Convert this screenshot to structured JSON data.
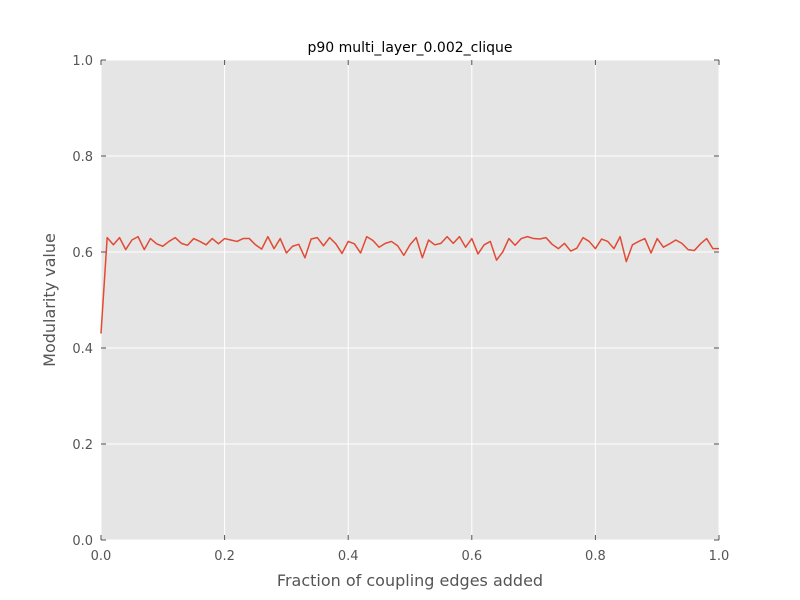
{
  "chart_data": {
    "type": "line",
    "title": "p90 multi_layer_0.002_clique",
    "xlabel": "Fraction of coupling edges added",
    "ylabel": "Modularity value",
    "xlim": [
      0.0,
      1.0
    ],
    "ylim": [
      0.0,
      1.0
    ],
    "xticks": [
      0.0,
      0.2,
      0.4,
      0.6,
      0.8,
      1.0
    ],
    "xtick_labels": [
      "0.0",
      "0.2",
      "0.4",
      "0.6",
      "0.8",
      "1.0"
    ],
    "yticks": [
      0.0,
      0.2,
      0.4,
      0.6,
      0.8,
      1.0
    ],
    "ytick_labels": [
      "0.0",
      "0.2",
      "0.4",
      "0.6",
      "0.8",
      "1.0"
    ],
    "grid": true,
    "legend": false,
    "colors": {
      "plot_background": "#e5e5e5",
      "grid": "#ffffff",
      "line": "#e24a33",
      "ticks": "#555555"
    },
    "series": [
      {
        "x": [
          0.0,
          0.01,
          0.02,
          0.03,
          0.04,
          0.05,
          0.06,
          0.07,
          0.08,
          0.09,
          0.1,
          0.11,
          0.12,
          0.13,
          0.14,
          0.15,
          0.16,
          0.17,
          0.18,
          0.19,
          0.2,
          0.21,
          0.22,
          0.23,
          0.24,
          0.25,
          0.26,
          0.27,
          0.28,
          0.29,
          0.3,
          0.31,
          0.32,
          0.33,
          0.34,
          0.35,
          0.36,
          0.37,
          0.38,
          0.39,
          0.4,
          0.41,
          0.42,
          0.43,
          0.44,
          0.45,
          0.46,
          0.47,
          0.48,
          0.49,
          0.5,
          0.51,
          0.52,
          0.53,
          0.54,
          0.55,
          0.56,
          0.57,
          0.58,
          0.59,
          0.6,
          0.61,
          0.62,
          0.63,
          0.64,
          0.65,
          0.66,
          0.67,
          0.68,
          0.69,
          0.7,
          0.71,
          0.72,
          0.73,
          0.74,
          0.75,
          0.76,
          0.77,
          0.78,
          0.79,
          0.8,
          0.81,
          0.82,
          0.83,
          0.84,
          0.85,
          0.86,
          0.87,
          0.88,
          0.89,
          0.9,
          0.91,
          0.92,
          0.93,
          0.94,
          0.95,
          0.96,
          0.97,
          0.98,
          0.99,
          1.0
        ],
        "y": [
          0.43,
          0.63,
          0.615,
          0.63,
          0.605,
          0.625,
          0.632,
          0.605,
          0.628,
          0.617,
          0.612,
          0.622,
          0.63,
          0.618,
          0.614,
          0.628,
          0.622,
          0.615,
          0.628,
          0.617,
          0.628,
          0.625,
          0.622,
          0.628,
          0.628,
          0.615,
          0.606,
          0.632,
          0.607,
          0.628,
          0.598,
          0.612,
          0.616,
          0.588,
          0.627,
          0.63,
          0.613,
          0.63,
          0.617,
          0.597,
          0.622,
          0.617,
          0.598,
          0.632,
          0.624,
          0.61,
          0.618,
          0.622,
          0.613,
          0.593,
          0.615,
          0.63,
          0.588,
          0.625,
          0.615,
          0.618,
          0.632,
          0.618,
          0.632,
          0.61,
          0.628,
          0.596,
          0.615,
          0.622,
          0.583,
          0.6,
          0.628,
          0.614,
          0.628,
          0.632,
          0.628,
          0.627,
          0.63,
          0.616,
          0.607,
          0.618,
          0.602,
          0.608,
          0.63,
          0.622,
          0.607,
          0.627,
          0.622,
          0.607,
          0.632,
          0.58,
          0.615,
          0.622,
          0.628,
          0.598,
          0.628,
          0.61,
          0.617,
          0.625,
          0.618,
          0.605,
          0.603,
          0.617,
          0.628,
          0.607,
          0.607
        ]
      }
    ]
  }
}
